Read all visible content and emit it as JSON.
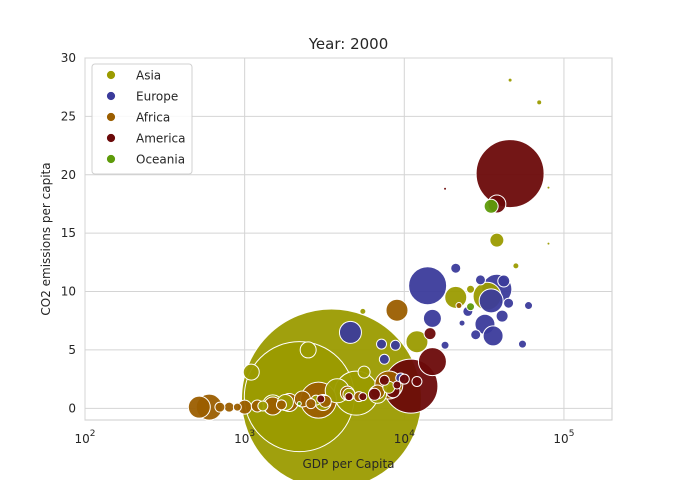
{
  "chart_data": {
    "type": "scatter",
    "title": "Year: 2000",
    "xlabel": "GDP per Capita",
    "ylabel": "CO2 emissions per capita",
    "x_scale": "log",
    "xlim": [
      100,
      200000
    ],
    "ylim": [
      -1,
      30
    ],
    "grid": true,
    "legend_placement": "top-left",
    "x_ticks": [
      {
        "value": 100,
        "base": "10",
        "exp": "2"
      },
      {
        "value": 1000,
        "base": "10",
        "exp": "3"
      },
      {
        "value": 10000,
        "base": "10",
        "exp": "4"
      },
      {
        "value": 100000,
        "base": "10",
        "exp": "5"
      }
    ],
    "y_ticks": [
      {
        "value": 0,
        "label": "0"
      },
      {
        "value": 5,
        "label": "5"
      },
      {
        "value": 10,
        "label": "10"
      },
      {
        "value": 15,
        "label": "15"
      },
      {
        "value": 20,
        "label": "20"
      },
      {
        "value": 25,
        "label": "25"
      },
      {
        "value": 30,
        "label": "30"
      }
    ],
    "series": [
      {
        "name": "Asia",
        "color": "#9b9b00",
        "points": [
          {
            "x": 3500,
            "y": 0.8,
            "size": 90
          },
          {
            "x": 2200,
            "y": 1.0,
            "size": 55
          },
          {
            "x": 5000,
            "y": 1.3,
            "size": 22
          },
          {
            "x": 2500,
            "y": 5.0,
            "size": 8
          },
          {
            "x": 1100,
            "y": 3.1,
            "size": 8
          },
          {
            "x": 5600,
            "y": 3.1,
            "size": 6
          },
          {
            "x": 3800,
            "y": 1.5,
            "size": 12
          },
          {
            "x": 1500,
            "y": 0.3,
            "size": 10
          },
          {
            "x": 1800,
            "y": 0.5,
            "size": 8
          },
          {
            "x": 12000,
            "y": 5.7,
            "size": 11
          },
          {
            "x": 21000,
            "y": 9.5,
            "size": 11
          },
          {
            "x": 33000,
            "y": 9.6,
            "size": 14
          },
          {
            "x": 38000,
            "y": 14.4,
            "size": 7
          },
          {
            "x": 46000,
            "y": 28.1,
            "size": 2
          },
          {
            "x": 70000,
            "y": 26.2,
            "size": 2.5
          },
          {
            "x": 50000,
            "y": 12.2,
            "size": 3
          },
          {
            "x": 5500,
            "y": 8.3,
            "size": 3
          },
          {
            "x": 3100,
            "y": 0.5,
            "size": 8
          },
          {
            "x": 6800,
            "y": 1.2,
            "size": 9
          },
          {
            "x": 26000,
            "y": 10.2,
            "size": 4
          },
          {
            "x": 2800,
            "y": 0.7,
            "size": 5
          },
          {
            "x": 4500,
            "y": 1.2,
            "size": 6
          },
          {
            "x": 8000,
            "y": 1.8,
            "size": 6
          },
          {
            "x": 1300,
            "y": 0.2,
            "size": 5
          },
          {
            "x": 80000,
            "y": 18.9,
            "size": 1.5
          },
          {
            "x": 80000,
            "y": 14.1,
            "size": 1.5
          }
        ]
      },
      {
        "name": "Europe",
        "color": "#3b3b9b",
        "points": [
          {
            "x": 14000,
            "y": 10.5,
            "size": 19
          },
          {
            "x": 38000,
            "y": 10.2,
            "size": 15
          },
          {
            "x": 35000,
            "y": 9.2,
            "size": 12
          },
          {
            "x": 32000,
            "y": 7.2,
            "size": 10
          },
          {
            "x": 36000,
            "y": 6.2,
            "size": 10
          },
          {
            "x": 4600,
            "y": 6.5,
            "size": 11
          },
          {
            "x": 15000,
            "y": 7.7,
            "size": 9
          },
          {
            "x": 42000,
            "y": 10.9,
            "size": 6
          },
          {
            "x": 41000,
            "y": 7.9,
            "size": 6
          },
          {
            "x": 21000,
            "y": 12.0,
            "size": 5
          },
          {
            "x": 25000,
            "y": 8.3,
            "size": 5
          },
          {
            "x": 28000,
            "y": 6.3,
            "size": 5
          },
          {
            "x": 18000,
            "y": 5.4,
            "size": 4
          },
          {
            "x": 60000,
            "y": 8.8,
            "size": 4
          },
          {
            "x": 55000,
            "y": 5.5,
            "size": 4
          },
          {
            "x": 7200,
            "y": 5.5,
            "size": 5
          },
          {
            "x": 8800,
            "y": 5.4,
            "size": 5
          },
          {
            "x": 7500,
            "y": 4.2,
            "size": 5
          },
          {
            "x": 9500,
            "y": 2.6,
            "size": 5
          },
          {
            "x": 30000,
            "y": 11.0,
            "size": 5
          },
          {
            "x": 45000,
            "y": 9.0,
            "size": 5
          },
          {
            "x": 23000,
            "y": 7.3,
            "size": 3
          }
        ]
      },
      {
        "name": "Africa",
        "color": "#9b5e00",
        "points": [
          {
            "x": 2900,
            "y": 0.7,
            "size": 18
          },
          {
            "x": 8000,
            "y": 2.0,
            "size": 14
          },
          {
            "x": 600,
            "y": 0.1,
            "size": 13
          },
          {
            "x": 520,
            "y": 0.1,
            "size": 11
          },
          {
            "x": 9000,
            "y": 8.4,
            "size": 11
          },
          {
            "x": 1500,
            "y": 0.2,
            "size": 9
          },
          {
            "x": 1900,
            "y": 0.5,
            "size": 9
          },
          {
            "x": 2300,
            "y": 0.8,
            "size": 8
          },
          {
            "x": 4400,
            "y": 1.3,
            "size": 7
          },
          {
            "x": 1000,
            "y": 0.1,
            "size": 7
          },
          {
            "x": 6800,
            "y": 1.4,
            "size": 7
          },
          {
            "x": 1200,
            "y": 0.2,
            "size": 6
          },
          {
            "x": 800,
            "y": 0.1,
            "size": 5
          },
          {
            "x": 700,
            "y": 0.1,
            "size": 5
          },
          {
            "x": 3200,
            "y": 0.6,
            "size": 6
          },
          {
            "x": 1700,
            "y": 0.3,
            "size": 5
          },
          {
            "x": 5200,
            "y": 1.0,
            "size": 5
          },
          {
            "x": 2600,
            "y": 0.4,
            "size": 5
          },
          {
            "x": 900,
            "y": 0.1,
            "size": 4
          },
          {
            "x": 22000,
            "y": 8.8,
            "size": 3
          }
        ]
      },
      {
        "name": "America",
        "color": "#6b0a0a",
        "points": [
          {
            "x": 46000,
            "y": 20.1,
            "size": 34
          },
          {
            "x": 11000,
            "y": 1.9,
            "size": 27
          },
          {
            "x": 15000,
            "y": 4.0,
            "size": 14
          },
          {
            "x": 38000,
            "y": 17.5,
            "size": 9
          },
          {
            "x": 8500,
            "y": 1.5,
            "size": 7
          },
          {
            "x": 6500,
            "y": 1.2,
            "size": 6
          },
          {
            "x": 14500,
            "y": 6.4,
            "size": 6
          },
          {
            "x": 10000,
            "y": 2.5,
            "size": 5
          },
          {
            "x": 7500,
            "y": 2.4,
            "size": 5
          },
          {
            "x": 12000,
            "y": 2.3,
            "size": 5
          },
          {
            "x": 5500,
            "y": 1.0,
            "size": 4
          },
          {
            "x": 9000,
            "y": 2.0,
            "size": 4
          },
          {
            "x": 3000,
            "y": 0.8,
            "size": 4
          },
          {
            "x": 4500,
            "y": 1.0,
            "size": 4
          },
          {
            "x": 18000,
            "y": 18.8,
            "size": 1.5
          }
        ]
      },
      {
        "name": "Oceania",
        "color": "#5e9b0a",
        "points": [
          {
            "x": 35000,
            "y": 17.3,
            "size": 7
          },
          {
            "x": 26000,
            "y": 8.7,
            "size": 4
          },
          {
            "x": 2200,
            "y": 0.4,
            "size": 2
          }
        ]
      }
    ]
  }
}
